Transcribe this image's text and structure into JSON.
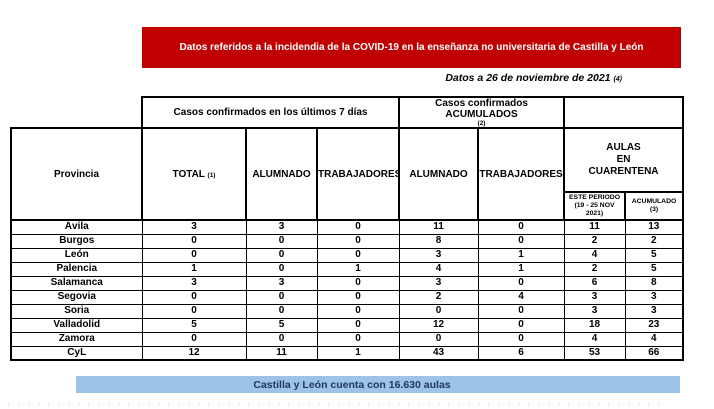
{
  "banner": {
    "text": "Datos referidos a la incidendia de la COVID-19 en la enseñanza no universitaria de Castilla y León"
  },
  "date_line": {
    "text": "Datos a 26 de noviembre de 2021",
    "note": "(4)"
  },
  "table": {
    "group_last7": "Casos confirmados en los últimos 7 días",
    "group_accumulated": "Casos confirmados ACUMULADOS",
    "group_accumulated_note": "(2)",
    "col_provincia": "Provincia",
    "col_total": "TOTAL",
    "col_total_note": "(1)",
    "col_alumnado_7d": "ALUMNADO",
    "col_trabajadores_7d": "TRABAJADORES",
    "col_alumnado_acc": "ALUMNADO",
    "col_trabajadores_acc": "TRABAJADORES",
    "col_aulas_line1": "AULAS",
    "col_aulas_line2": "EN",
    "col_aulas_line3": "CUARENTENA",
    "col_este_periodo_line1": "ESTE PERIODO",
    "col_este_periodo_line2": "(19 - 25 NOV",
    "col_este_periodo_line3": "2021)",
    "col_acumulado_line1": "ACUMULADO",
    "col_acumulado_line2": "(3)",
    "rows": [
      {
        "provincia": "Ávila",
        "values": [
          3,
          3,
          0,
          11,
          0,
          11,
          13
        ]
      },
      {
        "provincia": "Burgos",
        "values": [
          0,
          0,
          0,
          8,
          0,
          2,
          2
        ]
      },
      {
        "provincia": "León",
        "values": [
          0,
          0,
          0,
          3,
          1,
          4,
          5
        ]
      },
      {
        "provincia": "Palencia",
        "values": [
          1,
          0,
          1,
          4,
          1,
          2,
          5
        ]
      },
      {
        "provincia": "Salamanca",
        "values": [
          3,
          3,
          0,
          3,
          0,
          6,
          8
        ]
      },
      {
        "provincia": "Segovia",
        "values": [
          0,
          0,
          0,
          2,
          4,
          3,
          3
        ]
      },
      {
        "provincia": "Soria",
        "values": [
          0,
          0,
          0,
          0,
          0,
          3,
          3
        ]
      },
      {
        "provincia": "Valladolid",
        "values": [
          5,
          5,
          0,
          12,
          0,
          18,
          23
        ]
      },
      {
        "provincia": "Zamora",
        "values": [
          0,
          0,
          0,
          0,
          0,
          4,
          4
        ]
      },
      {
        "provincia": "CyL",
        "values": [
          12,
          11,
          1,
          43,
          6,
          53,
          66
        ]
      }
    ]
  },
  "footer": {
    "text": "Castilla y León cuenta con 16.630 aulas"
  },
  "colors": {
    "banner_red": "#C00000",
    "banner_blue": "#9DC3E6",
    "footer_text_blue": "#1F3864",
    "border_black": "#000000"
  }
}
